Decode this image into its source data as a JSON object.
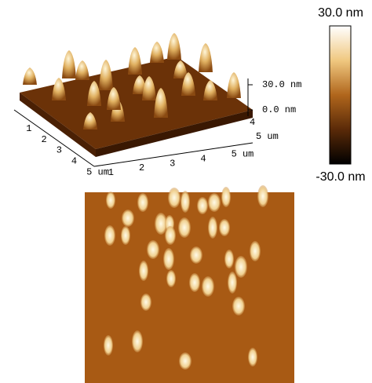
{
  "colorbar": {
    "max_label": "30.0 nm",
    "min_label": "-30.0 nm"
  },
  "surface_plot": {
    "z_labels": [
      "30.0 nm",
      "0.0 nm"
    ],
    "left_axis_labels": [
      "1",
      "2",
      "3",
      "4",
      "5 um"
    ],
    "front_axis_labels": [
      "1",
      "2",
      "3",
      "4",
      "5 um"
    ],
    "right_axis_labels": [
      "4",
      "5 um"
    ]
  }
}
